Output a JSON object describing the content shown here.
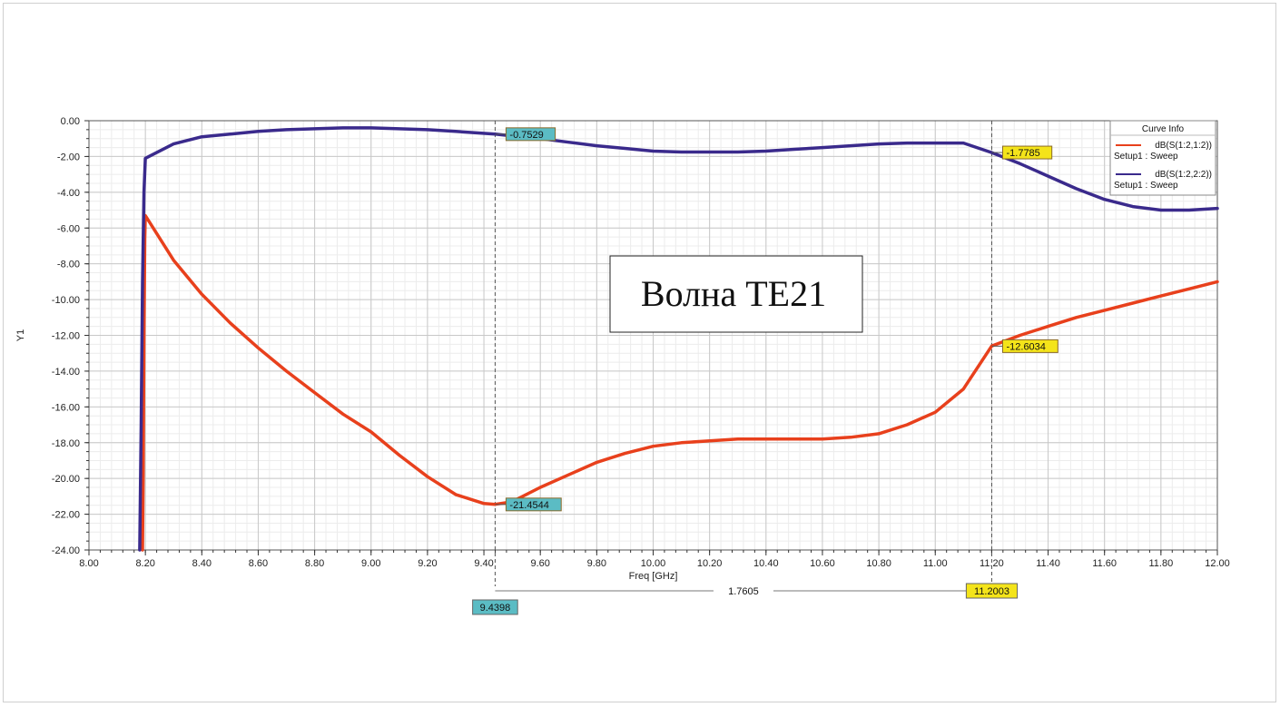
{
  "chart_data": {
    "type": "line",
    "xlabel": "Freq [GHz]",
    "ylabel": "Y1",
    "xlim": [
      8.0,
      12.0
    ],
    "ylim": [
      -24.0,
      0.0
    ],
    "x_ticks": [
      "8.00",
      "8.20",
      "8.40",
      "8.60",
      "8.80",
      "9.00",
      "9.20",
      "9.40",
      "9.60",
      "9.80",
      "10.00",
      "10.20",
      "10.40",
      "10.60",
      "10.80",
      "11.00",
      "11.20",
      "11.40",
      "11.60",
      "11.80",
      "12.00"
    ],
    "y_ticks": [
      "0.00",
      "-2.00",
      "-4.00",
      "-6.00",
      "-8.00",
      "-10.00",
      "-12.00",
      "-14.00",
      "-16.00",
      "-18.00",
      "-20.00",
      "-22.00",
      "-24.00"
    ],
    "grid": true,
    "legend": {
      "title": "Curve Info",
      "placement": "top-right",
      "entries": [
        {
          "name": "dB(S(1:2,1:2))",
          "sub": "Setup1 : Sweep",
          "color": "#e8401c"
        },
        {
          "name": "dB(S(1:2,2:2))",
          "sub": "Setup1 : Sweep",
          "color": "#3a2a8c"
        }
      ]
    },
    "series": [
      {
        "name": "dB(S(1:2,1:2))",
        "color": "#e8401c",
        "x": [
          8.19,
          8.192,
          8.195,
          8.198,
          8.2,
          8.3,
          8.4,
          8.5,
          8.6,
          8.7,
          8.8,
          8.9,
          9.0,
          9.1,
          9.2,
          9.3,
          9.4,
          9.44,
          9.5,
          9.6,
          9.7,
          9.8,
          9.9,
          10.0,
          10.1,
          10.2,
          10.3,
          10.4,
          10.5,
          10.6,
          10.7,
          10.8,
          10.9,
          11.0,
          11.1,
          11.2,
          11.3,
          11.4,
          11.5,
          11.6,
          11.7,
          11.8,
          11.9,
          12.0
        ],
        "y": [
          -24.0,
          -20.0,
          -12.0,
          -6.6,
          -5.3,
          -7.8,
          -9.7,
          -11.3,
          -12.7,
          -14.0,
          -15.2,
          -16.4,
          -17.4,
          -18.7,
          -19.9,
          -20.9,
          -21.4,
          -21.45,
          -21.3,
          -20.5,
          -19.8,
          -19.1,
          -18.6,
          -18.2,
          -18.0,
          -17.9,
          -17.8,
          -17.8,
          -17.8,
          -17.8,
          -17.7,
          -17.5,
          -17.0,
          -16.3,
          -15.0,
          -12.6,
          -12.0,
          -11.5,
          -11.0,
          -10.6,
          -10.2,
          -9.8,
          -9.4,
          -9.0
        ]
      },
      {
        "name": "dB(S(1:2,2:2))",
        "color": "#3a2a8c",
        "x": [
          8.18,
          8.185,
          8.19,
          8.195,
          8.2,
          8.3,
          8.4,
          8.5,
          8.6,
          8.7,
          8.8,
          8.9,
          9.0,
          9.1,
          9.2,
          9.3,
          9.44,
          9.5,
          9.6,
          9.7,
          9.8,
          9.9,
          10.0,
          10.1,
          10.2,
          10.3,
          10.4,
          10.5,
          10.6,
          10.7,
          10.8,
          10.9,
          11.0,
          11.1,
          11.2,
          11.3,
          11.4,
          11.5,
          11.6,
          11.7,
          11.8,
          11.9,
          12.0
        ],
        "y": [
          -24.0,
          -17.0,
          -9.0,
          -4.0,
          -2.1,
          -1.3,
          -0.9,
          -0.75,
          -0.6,
          -0.5,
          -0.45,
          -0.4,
          -0.4,
          -0.45,
          -0.5,
          -0.6,
          -0.75,
          -0.85,
          -1.0,
          -1.2,
          -1.4,
          -1.55,
          -1.7,
          -1.75,
          -1.75,
          -1.75,
          -1.7,
          -1.6,
          -1.5,
          -1.4,
          -1.3,
          -1.25,
          -1.25,
          -1.25,
          -1.78,
          -2.4,
          -3.1,
          -3.8,
          -4.4,
          -4.8,
          -5.0,
          -5.0,
          -4.9
        ]
      }
    ],
    "markers": [
      {
        "x": 9.4398,
        "label": "9.4398",
        "color": "#5bbcc4"
      },
      {
        "x": 11.2003,
        "label": "11.2003",
        "color": "#f4e41a"
      }
    ],
    "marker_values": [
      {
        "x": 9.4398,
        "y": -0.7529,
        "label": "-0.7529",
        "color": "#5bbcc4"
      },
      {
        "x": 9.4398,
        "y": -21.4544,
        "label": "-21.4544",
        "color": "#5bbcc4"
      },
      {
        "x": 11.2003,
        "y": -1.7785,
        "label": "-1.7785",
        "color": "#f4e41a"
      },
      {
        "x": 11.2003,
        "y": -12.6034,
        "label": "-12.6034",
        "color": "#f4e41a"
      }
    ],
    "delta": {
      "label": "1.7605"
    },
    "annotation": "Волна TE21"
  }
}
